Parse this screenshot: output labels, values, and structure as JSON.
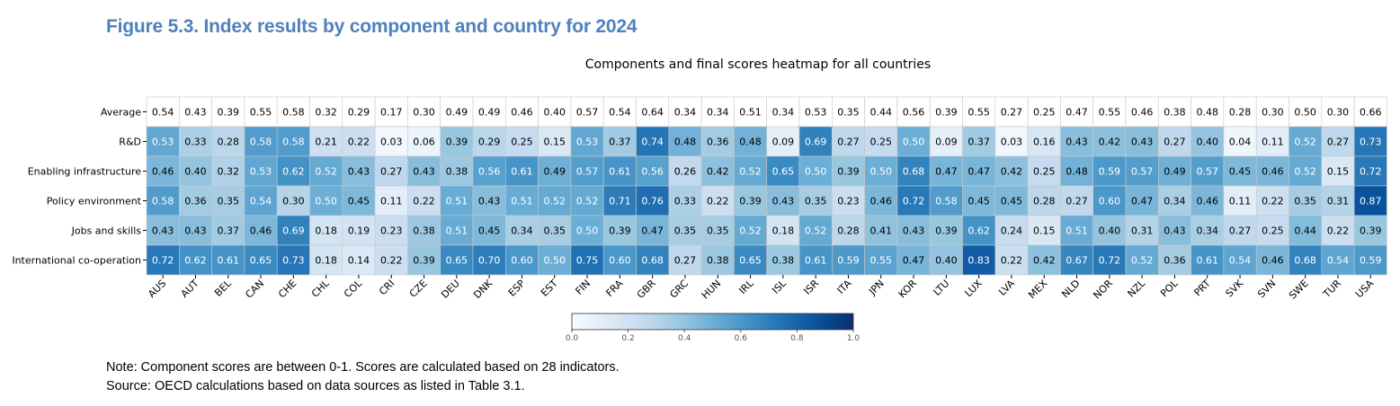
{
  "figure": {
    "title": "Figure 5.3. Index results by component and country for 2024",
    "note": "Note: Component scores are between 0-1. Scores are calculated based on 28 indicators.",
    "source": "Source: OECD calculations based on data sources as listed in Table 3.1."
  },
  "chart_data": {
    "type": "heatmap",
    "title": "Components and final scores heatmap for all countries",
    "xlabel": "",
    "ylabel": "",
    "colormap": "Blues",
    "vmin": 0.0,
    "vmax": 1.0,
    "colorbar_ticks": [
      "0.0",
      "0.2",
      "0.4",
      "0.6",
      "0.8",
      "1.0"
    ],
    "rows": [
      "Average",
      "R&D",
      "Enabling infrastructure",
      "Policy environment",
      "Jobs and skills",
      "International co-operation"
    ],
    "columns": [
      "AUS",
      "AUT",
      "BEL",
      "CAN",
      "CHE",
      "CHL",
      "COL",
      "CRI",
      "CZE",
      "DEU",
      "DNK",
      "ESP",
      "EST",
      "FIN",
      "FRA",
      "GBR",
      "GRC",
      "HUN",
      "IRL",
      "ISL",
      "ISR",
      "ITA",
      "JPN",
      "KOR",
      "LTU",
      "LUX",
      "LVA",
      "MEX",
      "NLD",
      "NOR",
      "NZL",
      "POL",
      "PRT",
      "SVK",
      "SVN",
      "SWE",
      "TUR",
      "USA"
    ],
    "values": [
      [
        0.54,
        0.43,
        0.39,
        0.55,
        0.58,
        0.32,
        0.29,
        0.17,
        0.3,
        0.49,
        0.49,
        0.46,
        0.4,
        0.57,
        0.54,
        0.64,
        0.34,
        0.34,
        0.51,
        0.34,
        0.53,
        0.35,
        0.44,
        0.56,
        0.39,
        0.55,
        0.27,
        0.25,
        0.47,
        0.55,
        0.46,
        0.38,
        0.48,
        0.28,
        0.3,
        0.5,
        0.3,
        0.66
      ],
      [
        0.53,
        0.33,
        0.28,
        0.58,
        0.58,
        0.21,
        0.22,
        0.03,
        0.06,
        0.39,
        0.29,
        0.25,
        0.15,
        0.53,
        0.37,
        0.74,
        0.48,
        0.36,
        0.48,
        0.09,
        0.69,
        0.27,
        0.25,
        0.5,
        0.09,
        0.37,
        0.03,
        0.16,
        0.43,
        0.42,
        0.43,
        0.27,
        0.4,
        0.04,
        0.11,
        0.52,
        0.27,
        0.73
      ],
      [
        0.46,
        0.4,
        0.32,
        0.53,
        0.62,
        0.52,
        0.43,
        0.27,
        0.43,
        0.38,
        0.56,
        0.61,
        0.49,
        0.57,
        0.61,
        0.56,
        0.26,
        0.42,
        0.52,
        0.65,
        0.5,
        0.39,
        0.5,
        0.68,
        0.47,
        0.47,
        0.42,
        0.25,
        0.48,
        0.59,
        0.57,
        0.49,
        0.57,
        0.45,
        0.46,
        0.52,
        0.15,
        0.72
      ],
      [
        0.58,
        0.36,
        0.35,
        0.54,
        0.3,
        0.5,
        0.45,
        0.11,
        0.22,
        0.51,
        0.43,
        0.51,
        0.52,
        0.52,
        0.71,
        0.76,
        0.33,
        0.22,
        0.39,
        0.43,
        0.35,
        0.23,
        0.46,
        0.72,
        0.58,
        0.45,
        0.45,
        0.28,
        0.27,
        0.6,
        0.47,
        0.34,
        0.46,
        0.11,
        0.22,
        0.35,
        0.31,
        0.87
      ],
      [
        0.43,
        0.43,
        0.37,
        0.46,
        0.69,
        0.18,
        0.19,
        0.23,
        0.38,
        0.51,
        0.45,
        0.34,
        0.35,
        0.5,
        0.39,
        0.47,
        0.35,
        0.35,
        0.52,
        0.18,
        0.52,
        0.28,
        0.41,
        0.43,
        0.39,
        0.62,
        0.24,
        0.15,
        0.51,
        0.4,
        0.31,
        0.43,
        0.34,
        0.27,
        0.25,
        0.44,
        0.22,
        0.39
      ],
      [
        0.72,
        0.62,
        0.61,
        0.65,
        0.73,
        0.18,
        0.14,
        0.22,
        0.39,
        0.65,
        0.7,
        0.6,
        0.5,
        0.75,
        0.6,
        0.68,
        0.27,
        0.38,
        0.65,
        0.38,
        0.61,
        0.59,
        0.55,
        0.47,
        0.4,
        0.83,
        0.22,
        0.42,
        0.67,
        0.72,
        0.52,
        0.36,
        0.61,
        0.54,
        0.46,
        0.68,
        0.54,
        0.59
      ]
    ],
    "first_row_style": "white cells (unshaded)"
  }
}
